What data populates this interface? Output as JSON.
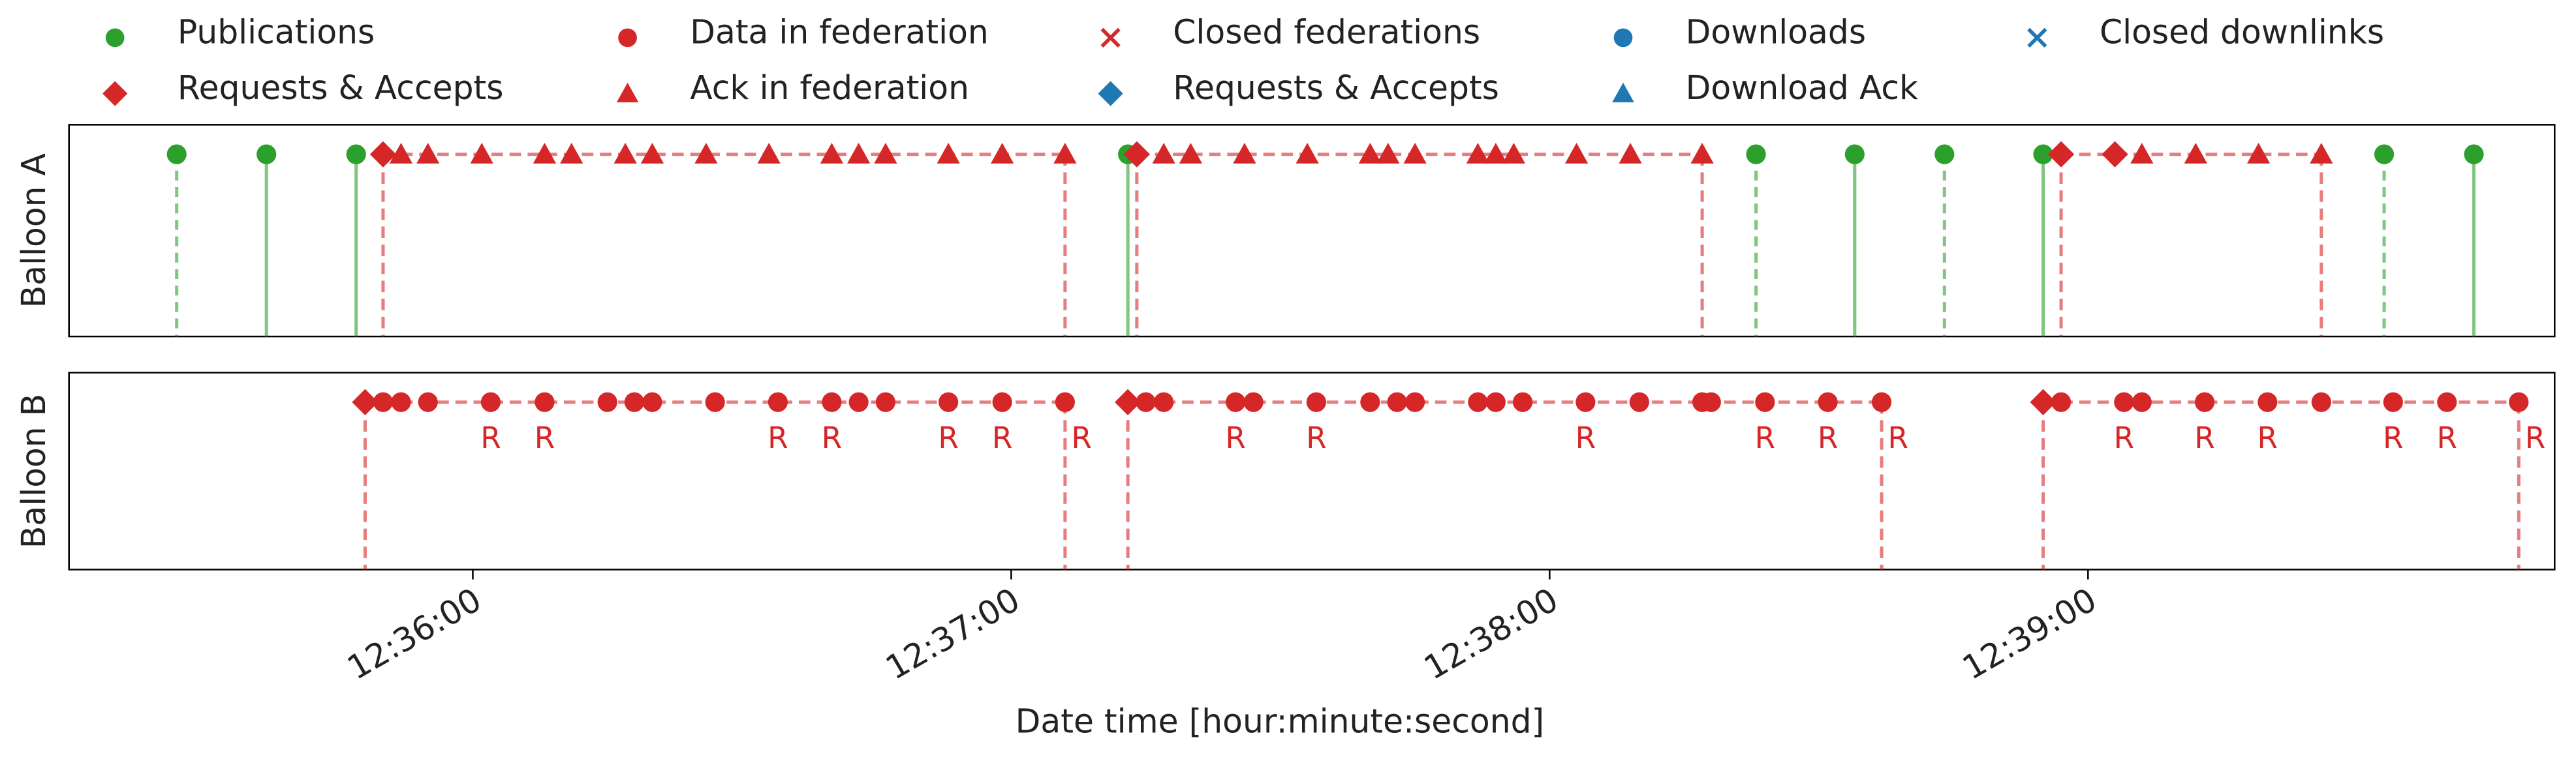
{
  "chart_data": {
    "type": "timeline",
    "xlabel": "Date time [hour:minute:second]",
    "xlim": [
      "12:35:15",
      "12:39:52"
    ],
    "xticks": [
      "12:36:00",
      "12:37:00",
      "12:38:00",
      "12:39:00"
    ],
    "legend": [
      {
        "name": "Publications",
        "marker": "circle",
        "color": "#2ca02c"
      },
      {
        "name": "Requests & Accepts",
        "marker": "diamond",
        "color": "#d62728"
      },
      {
        "name": "Data in federation",
        "marker": "circle",
        "color": "#d62728"
      },
      {
        "name": "Ack in federation",
        "marker": "triangle",
        "color": "#d62728"
      },
      {
        "name": "Closed federations",
        "marker": "x",
        "color": "#d62728"
      },
      {
        "name": "Requests & Accepts",
        "marker": "diamond",
        "color": "#1f77b4"
      },
      {
        "name": "Downloads",
        "marker": "circle",
        "color": "#1f77b4"
      },
      {
        "name": "Download Ack",
        "marker": "triangle",
        "color": "#1f77b4"
      },
      {
        "name": "Closed downlinks",
        "marker": "x",
        "color": "#1f77b4"
      }
    ],
    "panels": [
      {
        "ylabel": "Balloon A",
        "publications": {
          "color": "#2ca02c",
          "x": [
            "12:35:27",
            "12:35:37",
            "12:35:47",
            "12:37:13",
            "12:38:23",
            "12:38:34",
            "12:38:44",
            "12:38:55",
            "12:39:33",
            "12:39:43"
          ],
          "dashed": [
            true,
            false,
            false,
            false,
            true,
            false,
            true,
            false,
            true,
            false
          ]
        },
        "federations": [
          {
            "color": "#d62728",
            "point_marker": "triangle",
            "requests": [
              "12:35:50"
            ],
            "points": [
              "12:35:52",
              "12:35:55",
              "12:36:01",
              "12:36:08",
              "12:36:11",
              "12:36:17",
              "12:36:20",
              "12:36:26",
              "12:36:33",
              "12:36:40",
              "12:36:43",
              "12:36:46",
              "12:36:53",
              "12:36:59",
              "12:37:06"
            ]
          },
          {
            "color": "#d62728",
            "point_marker": "triangle",
            "requests": [
              "12:37:14"
            ],
            "points": [
              "12:37:17",
              "12:37:20",
              "12:37:26",
              "12:37:33",
              "12:37:40",
              "12:37:42",
              "12:37:45",
              "12:37:52",
              "12:37:54",
              "12:37:56",
              "12:38:03",
              "12:38:09",
              "12:38:17"
            ]
          },
          {
            "color": "#d62728",
            "point_marker": "triangle",
            "requests": [
              "12:38:57",
              "12:39:03"
            ],
            "points": [
              "12:39:06",
              "12:39:12",
              "12:39:19",
              "12:39:26"
            ]
          }
        ]
      },
      {
        "ylabel": "Balloon B",
        "federations": [
          {
            "color": "#d62728",
            "point_marker": "circle",
            "requests": [
              "12:35:48"
            ],
            "points": [
              "12:35:50",
              "12:35:52",
              "12:35:55",
              "12:36:02",
              "12:36:08",
              "12:36:15",
              "12:36:18",
              "12:36:20",
              "12:36:27",
              "12:36:34",
              "12:36:40",
              "12:36:43",
              "12:36:46",
              "12:36:53",
              "12:36:59",
              "12:37:06"
            ],
            "labels": [
              null,
              null,
              null,
              "R",
              "R",
              null,
              null,
              null,
              null,
              "R",
              "R",
              null,
              null,
              "R",
              "R",
              "R"
            ]
          },
          {
            "color": "#d62728",
            "point_marker": "circle",
            "requests": [
              "12:37:13"
            ],
            "points": [
              "12:37:15",
              "12:37:17",
              "12:37:25",
              "12:37:27",
              "12:37:34",
              "12:37:40",
              "12:37:43",
              "12:37:45",
              "12:37:52",
              "12:37:54",
              "12:37:57",
              "12:38:04",
              "12:38:10",
              "12:38:17",
              "12:38:18",
              "12:38:24",
              "12:38:31",
              "12:38:37"
            ],
            "labels": [
              null,
              null,
              "R",
              null,
              "R",
              null,
              null,
              null,
              null,
              null,
              null,
              "R",
              null,
              null,
              null,
              "R",
              "R",
              "R"
            ]
          },
          {
            "color": "#d62728",
            "point_marker": "circle",
            "requests": [
              "12:38:55"
            ],
            "points": [
              "12:38:57",
              "12:39:04",
              "12:39:06",
              "12:39:13",
              "12:39:20",
              "12:39:26",
              "12:39:34",
              "12:39:40",
              "12:39:48"
            ],
            "labels": [
              null,
              "R",
              null,
              "R",
              "R",
              null,
              "R",
              "R",
              "R"
            ]
          }
        ]
      }
    ]
  }
}
